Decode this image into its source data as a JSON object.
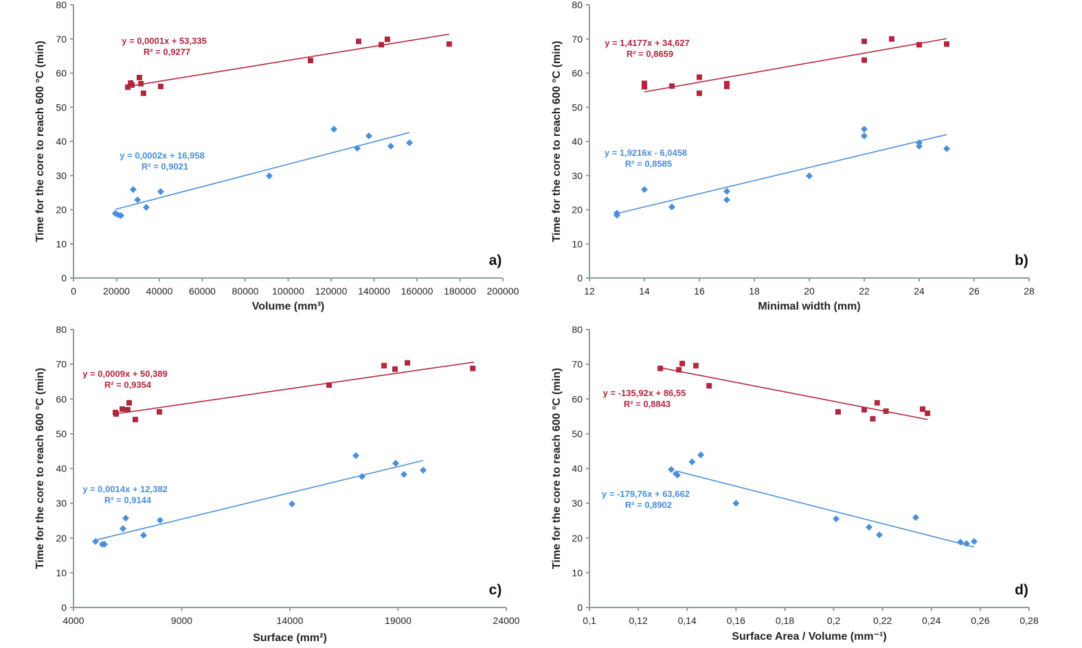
{
  "colors": {
    "red": "#b3273d",
    "blue": "#4a8fdc",
    "axis": "#8c9c9c"
  },
  "chart_data": [
    {
      "type": "scatter",
      "panel_label": "a)",
      "xlabel": "Volume (mm³)",
      "ylabel": "Time for the core to reach 600 °C (min)",
      "xlim": [
        0,
        200000
      ],
      "ylim": [
        0,
        80
      ],
      "xticks": [
        "0",
        "20000",
        "40000",
        "60000",
        "80000",
        "100000",
        "120000",
        "140000",
        "160000",
        "180000",
        "200000"
      ],
      "xtick_values": [
        0,
        20000,
        40000,
        60000,
        80000,
        100000,
        120000,
        140000,
        160000,
        180000,
        200000
      ],
      "yticks": [
        "0",
        "10",
        "20",
        "30",
        "40",
        "50",
        "60",
        "70",
        "80"
      ],
      "series": [
        {
          "name": "red",
          "marker": "square",
          "x": [
            25300,
            26600,
            27200,
            30700,
            31400,
            32600,
            40600,
            110400,
            132800,
            143400,
            146200,
            175000
          ],
          "y": [
            55.9,
            57.1,
            56.5,
            58.7,
            56.9,
            54.1,
            56.1,
            63.7,
            69.3,
            68.3,
            69.9,
            68.5
          ],
          "trend": {
            "x": [
              25300,
              175000
            ],
            "y": [
              56.1,
              71.4
            ]
          },
          "equation": "y = 0,0001x + 53,335",
          "r2": "R² = 0,9277"
        },
        {
          "name": "blue",
          "marker": "diamond",
          "x": [
            19500,
            20800,
            22100,
            27800,
            29800,
            33900,
            40600,
            91200,
            121300,
            132200,
            137600,
            147800,
            156500
          ],
          "y": [
            18.9,
            18.5,
            18.3,
            25.9,
            22.9,
            20.7,
            25.3,
            29.9,
            43.6,
            38.0,
            41.6,
            38.6,
            39.6
          ],
          "trend": {
            "x": [
              19500,
              156500
            ],
            "y": [
              20.1,
              42.6
            ]
          },
          "equation": "y = 0,0002x + 16,958",
          "r2": "R² = 0,9021"
        }
      ]
    },
    {
      "type": "scatter",
      "panel_label": "b)",
      "xlabel": "Minimal width (mm)",
      "ylabel": "Time for the core to reach 600 °C (min)",
      "xlim": [
        12,
        28
      ],
      "ylim": [
        0,
        80
      ],
      "xticks": [
        "12",
        "14",
        "16",
        "18",
        "20",
        "22",
        "24",
        "26",
        "28"
      ],
      "xtick_values": [
        12,
        14,
        16,
        18,
        20,
        22,
        24,
        26,
        28
      ],
      "yticks": [
        "0",
        "10",
        "20",
        "30",
        "40",
        "50",
        "60",
        "70",
        "80"
      ],
      "series": [
        {
          "name": "red",
          "marker": "square",
          "x": [
            14,
            14,
            14,
            15,
            16,
            16,
            17,
            17,
            22,
            22,
            23,
            24,
            25
          ],
          "y": [
            57,
            56.5,
            56,
            56.2,
            58.8,
            54.1,
            56.9,
            56.1,
            69.3,
            63.8,
            70,
            68.3,
            68.5
          ],
          "trend": {
            "x": [
              14,
              25
            ],
            "y": [
              54.5,
              70.1
            ]
          },
          "equation": "y = 1,4177x + 34,627",
          "r2": "R² = 0,8659"
        },
        {
          "name": "blue",
          "marker": "diamond",
          "x": [
            13,
            13,
            14,
            15,
            17,
            17,
            20,
            22,
            22,
            24,
            24,
            25
          ],
          "y": [
            19,
            18.4,
            25.9,
            20.8,
            25.4,
            22.9,
            29.9,
            43.6,
            41.6,
            39.6,
            38.6,
            37.9
          ],
          "trend": {
            "x": [
              13,
              25
            ],
            "y": [
              18.9,
              42.0
            ]
          },
          "equation": "y = 1,9216x - 6,0458",
          "r2": "R² = 0,8585"
        }
      ]
    },
    {
      "type": "scatter",
      "panel_label": "c)",
      "xlabel": "Surface (mm²)",
      "ylabel": "Time for the core to reach 600 °C (min)",
      "xlim": [
        4000,
        24000
      ],
      "ylim": [
        0,
        80
      ],
      "xticks": [
        "4000",
        "9000",
        "14000",
        "19000",
        "24000"
      ],
      "xtick_values": [
        4000,
        9000,
        14000,
        19000,
        24000
      ],
      "yticks": [
        "0",
        "10",
        "20",
        "30",
        "40",
        "50",
        "60",
        "70",
        "80"
      ],
      "series": [
        {
          "name": "red",
          "marker": "square",
          "x": [
            5937,
            5970,
            6254,
            6508,
            6571,
            6857,
            7968,
            15810,
            18350,
            18858,
            19430,
            22450
          ],
          "y": [
            56.1,
            55.7,
            57.1,
            56.9,
            58.9,
            54.1,
            56.3,
            64.0,
            69.6,
            68.6,
            70.4,
            68.8
          ],
          "trend": {
            "x": [
              5937,
              22500
            ],
            "y": [
              55.7,
              70.6
            ]
          },
          "equation": "y = 0,0009x + 50,389",
          "r2": "R² = 0,9354"
        },
        {
          "name": "blue",
          "marker": "diamond",
          "x": [
            5016,
            5333,
            5430,
            6286,
            6413,
            7238,
            8000,
            14095,
            17048,
            17333,
            18889,
            19270,
            20159
          ],
          "y": [
            19.0,
            18.2,
            18.2,
            22.7,
            25.7,
            20.8,
            25.1,
            29.8,
            43.7,
            37.7,
            41.5,
            38.3,
            39.5
          ],
          "trend": {
            "x": [
              5016,
              20159
            ],
            "y": [
              19.4,
              42.3
            ]
          },
          "equation": "y = 0,0014x + 12,382",
          "r2": "R² = 0,9144"
        }
      ]
    },
    {
      "type": "scatter",
      "panel_label": "d)",
      "xlabel": "Surface Area / Volume (mm⁻¹)",
      "ylabel": "Time for the core to reach 600 °C (min)",
      "xlim": [
        0.1,
        0.28
      ],
      "ylim": [
        0,
        80
      ],
      "xticks": [
        "0,1",
        "0,12",
        "0,14",
        "0,16",
        "0,18",
        "0,2",
        "0,22",
        "0,24",
        "0,26",
        "0,28"
      ],
      "xtick_values": [
        0.1,
        0.12,
        0.14,
        0.16,
        0.18,
        0.2,
        0.22,
        0.24,
        0.26,
        0.28
      ],
      "yticks": [
        "0",
        "10",
        "20",
        "30",
        "40",
        "50",
        "60",
        "70",
        "80"
      ],
      "series": [
        {
          "name": "red",
          "marker": "square",
          "x": [
            0.129,
            0.1366,
            0.138,
            0.1436,
            0.149,
            0.2018,
            0.2125,
            0.216,
            0.2178,
            0.2214,
            0.2364,
            0.2384
          ],
          "y": [
            68.8,
            68.4,
            70.2,
            69.6,
            63.8,
            56.3,
            56.9,
            54.3,
            58.9,
            56.5,
            57.1,
            55.9
          ],
          "trend": {
            "x": [
              0.129,
              0.2384
            ],
            "y": [
              69.0,
              54.1
            ]
          },
          "equation": "y = -135,92x + 86,55",
          "r2": "R² = 0,8843"
        },
        {
          "name": "blue",
          "marker": "diamond",
          "x": [
            0.1335,
            0.1354,
            0.136,
            0.142,
            0.1456,
            0.16,
            0.201,
            0.2145,
            0.2187,
            0.2336,
            0.2519,
            0.2544,
            0.2575
          ],
          "y": [
            39.7,
            38.5,
            38.1,
            41.9,
            43.9,
            30.0,
            25.5,
            23.1,
            20.9,
            25.9,
            18.8,
            18.4,
            19.0
          ],
          "trend": {
            "x": [
              0.136,
              0.2575
            ],
            "y": [
              39.2,
              17.4
            ]
          },
          "equation": "y = -179,76x + 63,662",
          "r2": "R² = 0,8902"
        }
      ]
    }
  ]
}
